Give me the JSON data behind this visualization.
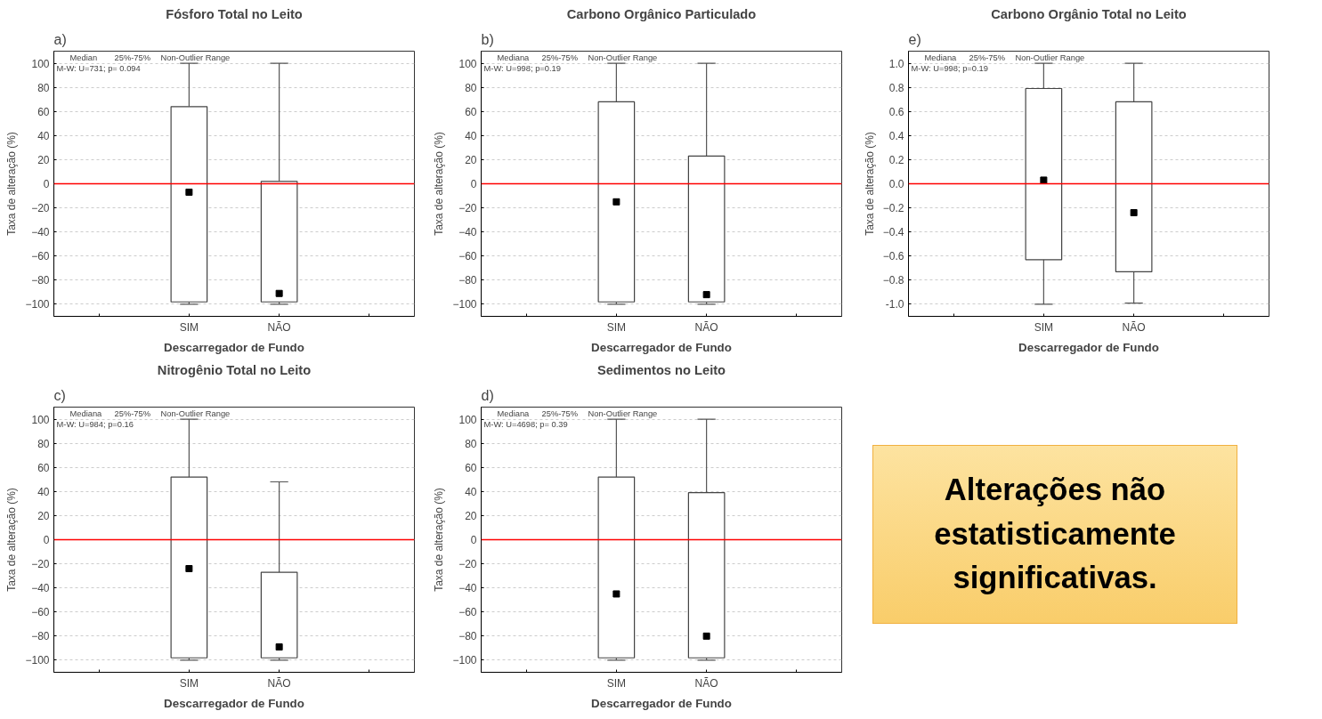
{
  "chart_data": [
    {
      "type": "box",
      "title": "Fósforo Total no Leito",
      "xlabel": "Descarregador de Fundo",
      "ylabel": "Taxa de alteração (%)",
      "categories": [
        "SIM",
        "NÃO"
      ],
      "boxes": [
        {
          "low": -100,
          "q1": -98,
          "median": -7,
          "q3": 64,
          "high": 100
        },
        {
          "low": -100,
          "q1": -98,
          "median": -91,
          "q3": 2,
          "high": 100
        }
      ],
      "ylim": [
        -110,
        110
      ],
      "yticks": [
        -100,
        -80,
        -60,
        -40,
        -20,
        0,
        20,
        40,
        60,
        80,
        100
      ],
      "grid": "y",
      "marker": "square",
      "ref_lines": [
        {
          "axis": "y",
          "value": 0,
          "color": "#ff0000"
        }
      ],
      "annotations": [
        "a)",
        "Median",
        "25%-75%",
        "Non-Outlier Range",
        "M-W: U=731; p= 0.094"
      ]
    },
    {
      "type": "box",
      "title": "Carbono Orgânico Particulado",
      "xlabel": "Descarregador de Fundo",
      "ylabel": "Taxa de alteração (%)",
      "categories": [
        "SIM",
        "NÃO"
      ],
      "boxes": [
        {
          "low": -100,
          "q1": -98,
          "median": -15,
          "q3": 68,
          "high": 100
        },
        {
          "low": -100,
          "q1": -98,
          "median": -92,
          "q3": 23,
          "high": 100
        }
      ],
      "ylim": [
        -110,
        110
      ],
      "yticks": [
        -100,
        -80,
        -60,
        -40,
        -20,
        0,
        20,
        40,
        60,
        80,
        100
      ],
      "grid": "y",
      "marker": "square",
      "ref_lines": [
        {
          "axis": "y",
          "value": 0,
          "color": "#ff0000"
        }
      ],
      "annotations": [
        "b)",
        "Mediana",
        "25%-75%",
        "Non-Outlier Range",
        "M-W: U=998; p=0.19"
      ]
    },
    {
      "type": "box",
      "title": "Carbono Orgânio Total no Leito",
      "xlabel": "Descarregador de Fundo",
      "ylabel": "Taxa de alteração (%)",
      "categories": [
        "SIM",
        "NÃO"
      ],
      "boxes": [
        {
          "low": -1.0,
          "q1": -0.63,
          "median": 0.03,
          "q3": 0.79,
          "high": 1.0
        },
        {
          "low": -0.99,
          "q1": -0.73,
          "median": -0.24,
          "q3": 0.68,
          "high": 1.0
        }
      ],
      "ylim": [
        -1.1,
        1.1
      ],
      "yticks": [
        {
          "value": -1,
          "label": "-1.0"
        },
        -0.8,
        -0.6,
        -0.4,
        -0.2,
        {
          "value": 0,
          "label": "0.0"
        },
        0.2,
        0.4,
        0.6,
        0.8,
        {
          "value": 1,
          "label": "1.0"
        }
      ],
      "grid": "y",
      "marker": "square",
      "ref_lines": [
        {
          "axis": "y",
          "value": 0,
          "color": "#ff0000"
        }
      ],
      "annotations": [
        "e)",
        "Mediana",
        "25%-75%",
        "Non-Outlier Range",
        "M-W: U=998; p=0.19"
      ]
    },
    {
      "type": "box",
      "title": "Nitrogênio Total no Leito",
      "xlabel": "Descarregador de Fundo",
      "ylabel": "Taxa de alteração (%)",
      "categories": [
        "SIM",
        "NÃO"
      ],
      "boxes": [
        {
          "low": -100,
          "q1": -98,
          "median": -24,
          "q3": 52,
          "high": 100
        },
        {
          "low": -100,
          "q1": -98,
          "median": -89,
          "q3": -27,
          "high": 48
        }
      ],
      "ylim": [
        -110,
        110
      ],
      "yticks": [
        -100,
        -80,
        -60,
        -40,
        -20,
        0,
        20,
        40,
        60,
        80,
        100
      ],
      "grid": "y",
      "marker": "square",
      "ref_lines": [
        {
          "axis": "y",
          "value": 0,
          "color": "#ff0000"
        }
      ],
      "annotations": [
        "c)",
        "Mediana",
        "25%-75%",
        "Non-Outlier Range",
        "M-W: U=984; p=0.16"
      ]
    },
    {
      "type": "box",
      "title": "Sedimentos no Leito",
      "xlabel": "Descarregador de Fundo",
      "ylabel": "Taxa de alteração (%)",
      "categories": [
        "SIM",
        "NÃO"
      ],
      "boxes": [
        {
          "low": -100,
          "q1": -98,
          "median": -45,
          "q3": 52,
          "high": 100
        },
        {
          "low": -100,
          "q1": -98,
          "median": -80,
          "q3": 39,
          "high": 100
        }
      ],
      "ylim": [
        -110,
        110
      ],
      "yticks": [
        -100,
        -80,
        -60,
        -40,
        -20,
        0,
        20,
        40,
        60,
        80,
        100
      ],
      "grid": "y",
      "marker": "square",
      "ref_lines": [
        {
          "axis": "y",
          "value": 0,
          "color": "#ff0000"
        }
      ],
      "annotations": [
        "d)",
        "Mediana",
        "25%-75%",
        "Non-Outlier Range",
        "M-W: U=4698; p= 0.39"
      ]
    },
    {
      "type": "other",
      "annotations": [
        "Alterações não estatisticamente significativas."
      ]
    }
  ]
}
